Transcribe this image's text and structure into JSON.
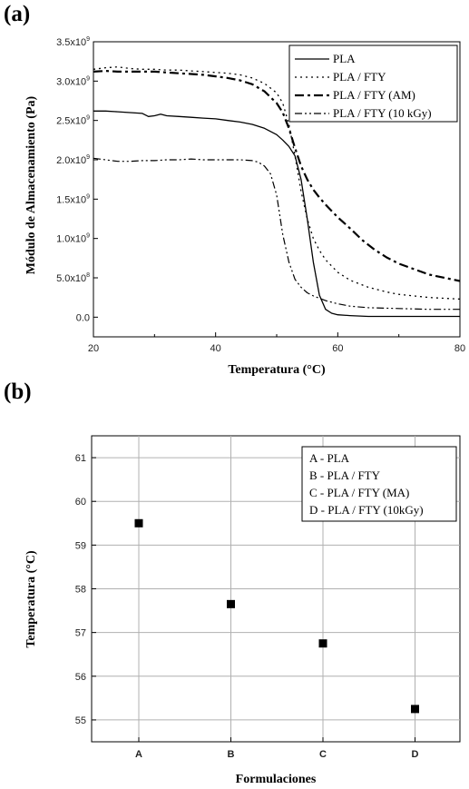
{
  "panel_a_label": "(a)",
  "panel_b_label": "(b)",
  "chart_data": [
    {
      "type": "line",
      "title": "",
      "xlabel": "Temperatura (°C)",
      "ylabel": "Módulo de Almacenamiento (Pa)",
      "xlim": [
        20,
        80
      ],
      "ylim": [
        -0.25,
        3.5
      ],
      "y_unit": "x10^9 Pa",
      "xticks": [
        {
          "value": 20,
          "label": "20"
        },
        {
          "value": 40,
          "label": "40"
        },
        {
          "value": 60,
          "label": "60"
        },
        {
          "value": 80,
          "label": "80"
        }
      ],
      "yticks": [
        {
          "value": 0.0,
          "mant": "0.0",
          "exp": ""
        },
        {
          "value": 0.5,
          "mant": "5.0x10",
          "exp": "8"
        },
        {
          "value": 1.0,
          "mant": "1.0x10",
          "exp": "9"
        },
        {
          "value": 1.5,
          "mant": "1.5x10",
          "exp": "9"
        },
        {
          "value": 2.0,
          "mant": "2.0x10",
          "exp": "9"
        },
        {
          "value": 2.5,
          "mant": "2.5x10",
          "exp": "9"
        },
        {
          "value": 3.0,
          "mant": "3.0x10",
          "exp": "9"
        },
        {
          "value": 3.5,
          "mant": "3.5x10",
          "exp": "9"
        }
      ],
      "legend_position": "top-right",
      "grid": false,
      "series": [
        {
          "name": "PLA",
          "style": "solid",
          "x": [
            20,
            22,
            24,
            26,
            28,
            29,
            30,
            31,
            32,
            34,
            36,
            38,
            40,
            42,
            44,
            46,
            48,
            50,
            51,
            52,
            53,
            54,
            55,
            56,
            57,
            58,
            59,
            60,
            62,
            65,
            70,
            75,
            80
          ],
          "y": [
            2.62,
            2.62,
            2.61,
            2.6,
            2.59,
            2.55,
            2.56,
            2.58,
            2.56,
            2.55,
            2.54,
            2.53,
            2.52,
            2.5,
            2.48,
            2.45,
            2.4,
            2.32,
            2.25,
            2.17,
            2.05,
            1.75,
            1.25,
            0.7,
            0.28,
            0.1,
            0.05,
            0.03,
            0.02,
            0.01,
            0.01,
            0.01,
            0.01
          ]
        },
        {
          "name": "PLA / FTY",
          "style": "dotted",
          "x": [
            20,
            22,
            24,
            26,
            28,
            30,
            32,
            34,
            36,
            38,
            40,
            42,
            44,
            46,
            48,
            50,
            51,
            52,
            53,
            54,
            55,
            56,
            57,
            58,
            60,
            62,
            65,
            68,
            70,
            75,
            80
          ],
          "y": [
            3.15,
            3.17,
            3.18,
            3.16,
            3.15,
            3.15,
            3.14,
            3.14,
            3.13,
            3.12,
            3.11,
            3.1,
            3.08,
            3.04,
            2.97,
            2.85,
            2.72,
            2.45,
            2.05,
            1.6,
            1.25,
            1.0,
            0.85,
            0.73,
            0.57,
            0.47,
            0.38,
            0.32,
            0.29,
            0.25,
            0.23
          ]
        },
        {
          "name": "PLA / FTY (AM)",
          "style": "dash-dot",
          "x": [
            20,
            22,
            24,
            26,
            28,
            30,
            32,
            34,
            36,
            38,
            40,
            42,
            44,
            46,
            48,
            50,
            51,
            52,
            53,
            54,
            55,
            56,
            57,
            58,
            60,
            62,
            64,
            66,
            68,
            70,
            75,
            80
          ],
          "y": [
            3.12,
            3.13,
            3.12,
            3.12,
            3.12,
            3.12,
            3.11,
            3.1,
            3.09,
            3.08,
            3.06,
            3.04,
            3.01,
            2.96,
            2.87,
            2.72,
            2.6,
            2.4,
            2.15,
            1.92,
            1.75,
            1.62,
            1.52,
            1.43,
            1.27,
            1.13,
            0.98,
            0.86,
            0.76,
            0.68,
            0.54,
            0.46
          ]
        },
        {
          "name": "PLA / FTY (10 kGy)",
          "style": "dash-dot-dot",
          "x": [
            20,
            22,
            24,
            26,
            28,
            30,
            32,
            34,
            36,
            38,
            40,
            42,
            44,
            46,
            47,
            48,
            49,
            50,
            51,
            52,
            53,
            54,
            55,
            56,
            57,
            58,
            60,
            62,
            65,
            70,
            75,
            80
          ],
          "y": [
            2.02,
            2.0,
            1.98,
            1.98,
            1.99,
            1.99,
            2.0,
            2.0,
            2.01,
            2.0,
            2.0,
            2.0,
            2.0,
            1.99,
            1.97,
            1.92,
            1.82,
            1.55,
            1.05,
            0.7,
            0.48,
            0.38,
            0.31,
            0.27,
            0.24,
            0.21,
            0.17,
            0.14,
            0.12,
            0.11,
            0.1,
            0.1
          ]
        }
      ]
    },
    {
      "type": "scatter",
      "title": "",
      "xlabel": "Formulaciones",
      "ylabel": "Temperatura (°C)",
      "ylim": [
        54.5,
        61.5
      ],
      "categories": [
        "A",
        "B",
        "C",
        "D"
      ],
      "values": [
        59.5,
        57.65,
        56.75,
        55.25
      ],
      "yticks": [
        55,
        56,
        57,
        58,
        59,
        60,
        61
      ],
      "grid": true,
      "legend_position": "top-right",
      "legend": [
        "A - PLA",
        "B - PLA / FTY",
        "C - PLA / FTY (MA)",
        "D - PLA / FTY (10kGy)"
      ]
    }
  ]
}
